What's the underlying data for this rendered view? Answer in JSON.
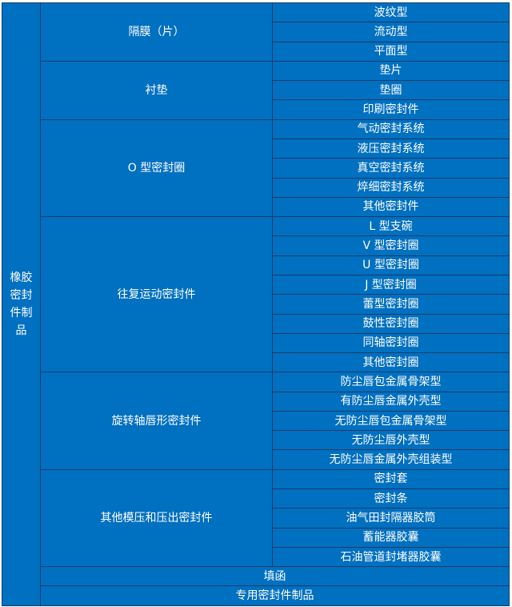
{
  "root": {
    "label": "橡胶密封件制品",
    "lines": [
      "橡胶",
      "密封",
      "件制",
      "品"
    ]
  },
  "colors": {
    "fill": "#0070c0",
    "border": "#1b3a6b",
    "text": "#ffffff"
  },
  "groups": [
    {
      "label": "隔膜（片）",
      "items": [
        "波纹型",
        "流动型",
        "平面型"
      ]
    },
    {
      "label": "衬垫",
      "items": [
        "垫片",
        "垫圈",
        "印刷密封件"
      ]
    },
    {
      "label": "O 型密封圈",
      "items": [
        "气动密封系统",
        "液压密封系统",
        "真空密封系统",
        "焠细密封系统",
        "其他密封件"
      ]
    },
    {
      "label": "往复运动密封件",
      "items": [
        "L 型支碗",
        "V 型密封圈",
        "U 型密封圈",
        "J 型密封圈",
        "蕾型密封圈",
        "鼓性密封圈",
        "同轴密封圈",
        "其他密封圈"
      ]
    },
    {
      "label": "旋转轴唇形密封件",
      "items": [
        "防尘唇包金属骨架型",
        "有防尘唇金属外壳型",
        "无防尘唇包金属骨架型",
        "无防尘唇外壳型",
        "无防尘唇金属外壳组装型"
      ]
    },
    {
      "label": "其他模压和压出密封件",
      "items": [
        "密封套",
        "密封条",
        "油气田封隔器胶筒",
        "蓄能器胶囊",
        "石油管道封堵器胶囊"
      ]
    }
  ],
  "full_rows": [
    "填函",
    "专用密封件制品"
  ]
}
